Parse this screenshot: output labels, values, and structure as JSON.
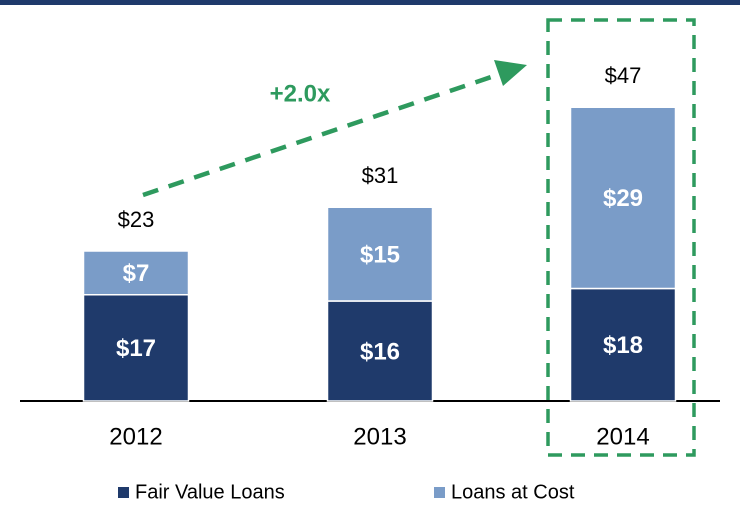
{
  "chart_data": {
    "type": "stacked_bar",
    "categories": [
      "2012",
      "2013",
      "2014"
    ],
    "series": [
      {
        "name": "Fair Value Loans",
        "color": "#1f3a6b",
        "values": [
          17,
          16,
          18
        ],
        "value_labels": [
          "$17",
          "$16",
          "$18"
        ]
      },
      {
        "name": "Loans at Cost",
        "color": "#7a9cc8",
        "values": [
          7,
          15,
          29
        ],
        "value_labels": [
          "$7",
          "$15",
          "$29"
        ]
      }
    ],
    "total_labels": [
      "$23",
      "$31",
      "$47"
    ],
    "annotation": "+2.0x",
    "ylim": [
      0,
      60
    ],
    "legend": "bottom"
  }
}
